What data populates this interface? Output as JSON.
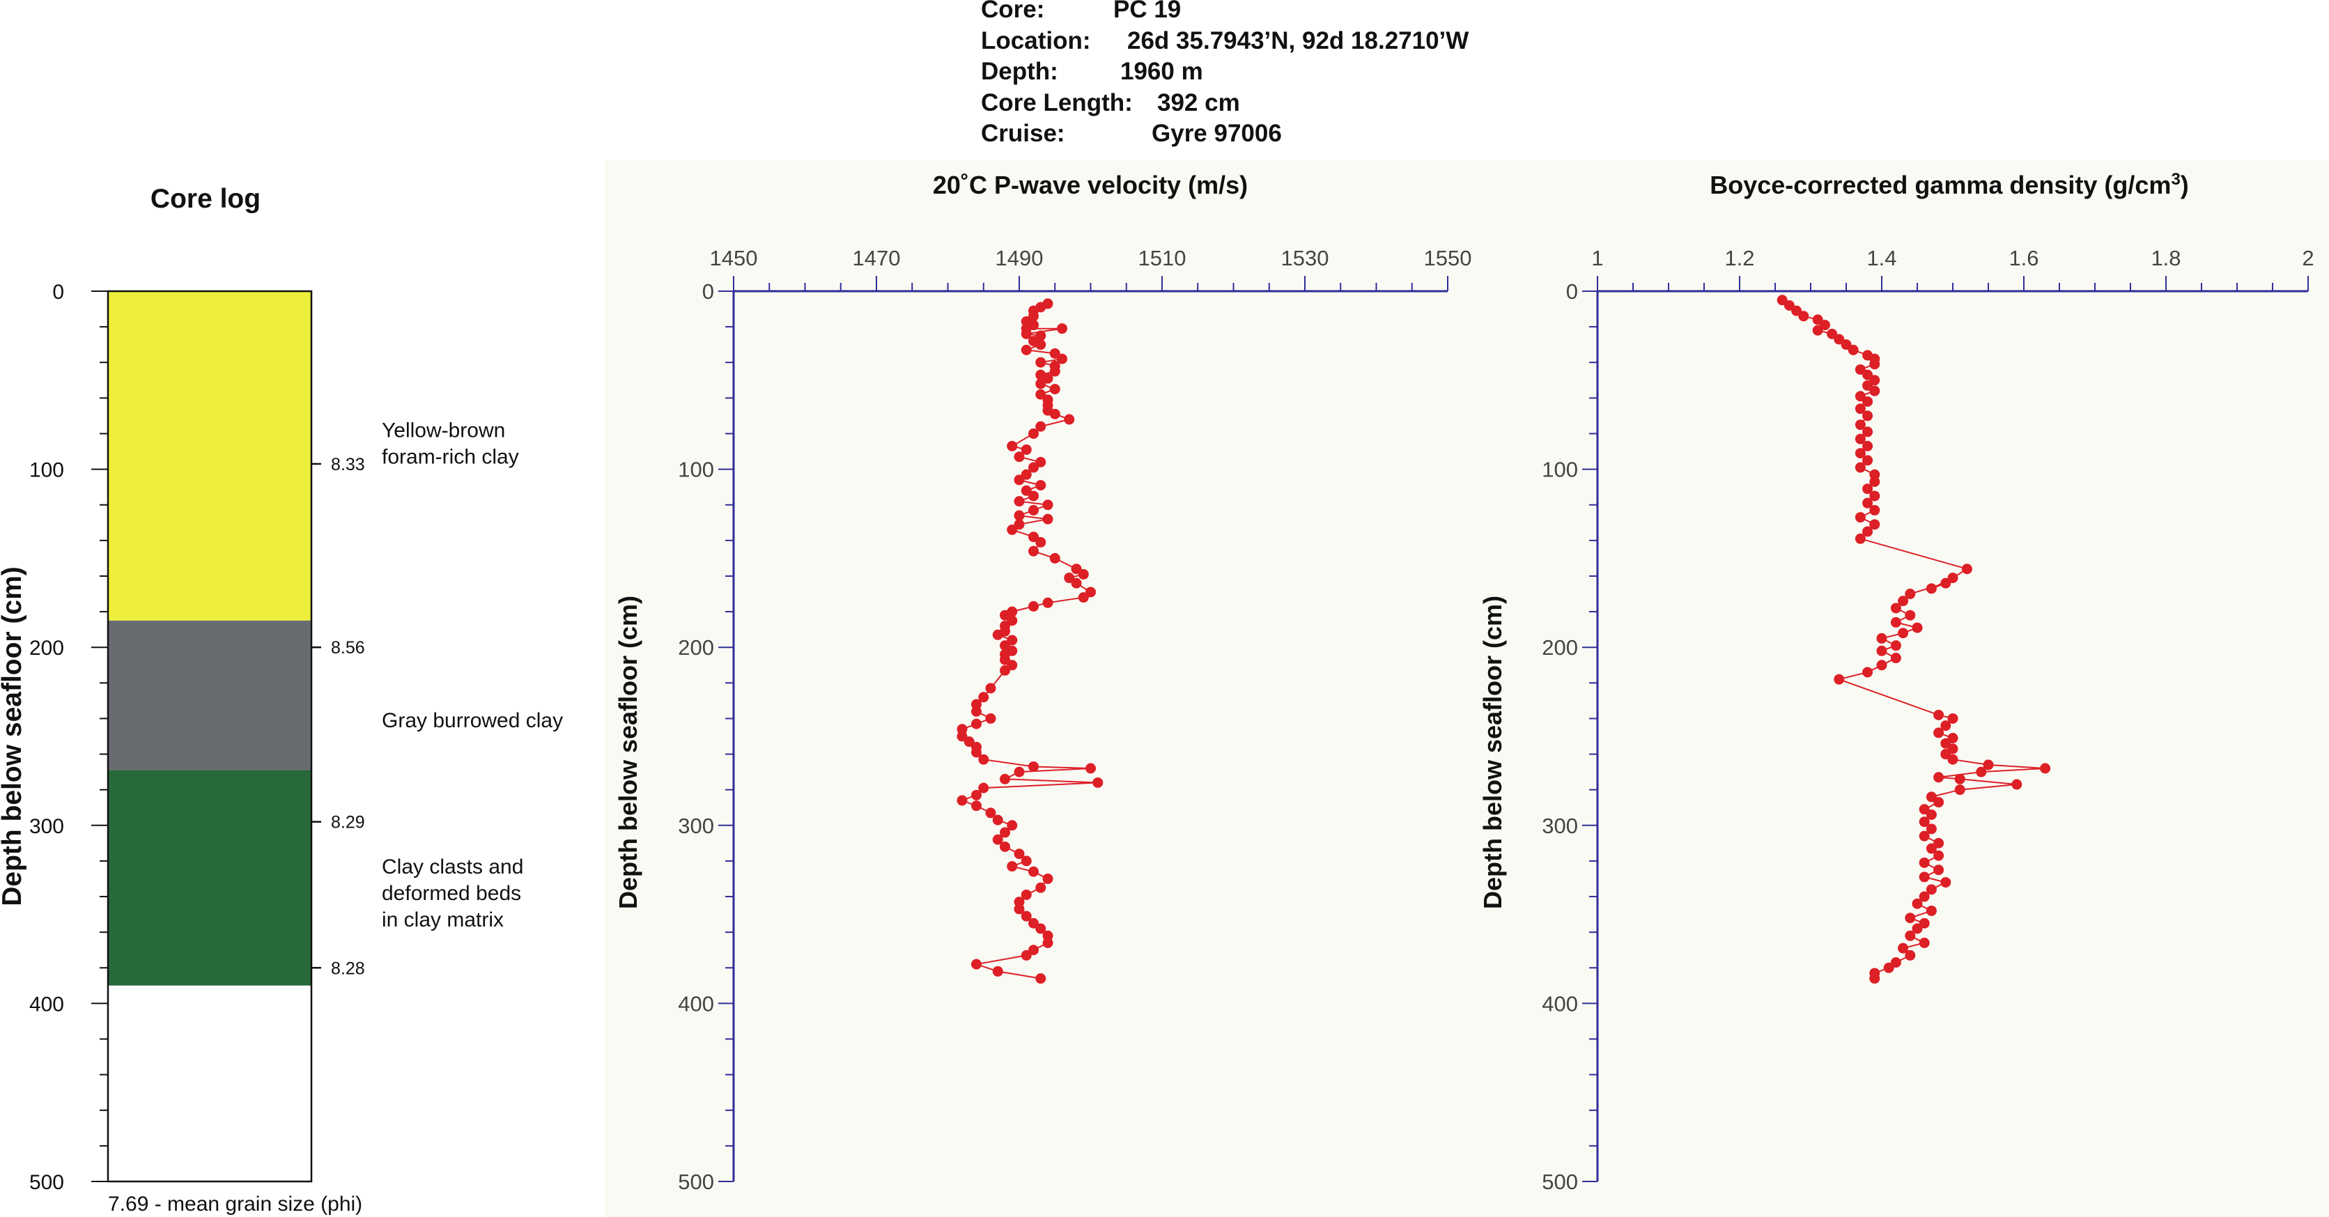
{
  "header": {
    "rows": [
      {
        "label": "Core:",
        "value": "PC 19"
      },
      {
        "label": "Location:",
        "value": "26d 35.7943’N, 92d 18.2710’W"
      },
      {
        "label": "Depth:",
        "value": "1960 m"
      },
      {
        "label": "Core Length:",
        "value": "392 cm"
      },
      {
        "label": "Cruise:",
        "value": "Gyre 97006"
      }
    ]
  },
  "colors": {
    "yellow_clay": "#eeee3c",
    "gray_clay": "#686c70",
    "green_clay": "#27693b",
    "axis": "#2e2e9a",
    "data": "#dd1f26",
    "panel_bg": "#fafaf4"
  },
  "chart_data": [
    {
      "type": "bar",
      "title": "Core log",
      "ylabel": "Depth below seafloor (cm)",
      "ylim": [
        0,
        500
      ],
      "yticks": [
        0,
        100,
        200,
        300,
        400,
        500
      ],
      "footnote": "7.69 - mean grain size (phi)",
      "units": [
        {
          "top": 0,
          "bottom": 185,
          "color": "#eeee3c",
          "label": [
            "Yellow-brown",
            "foram-rich clay"
          ],
          "label_depth": 82
        },
        {
          "top": 185,
          "bottom": 269,
          "color": "#686c70",
          "label": [
            "Gray burrowed clay"
          ],
          "label_depth": 245
        },
        {
          "top": 269,
          "bottom": 390,
          "color": "#27693b",
          "label": [
            "Clay clasts and",
            "deformed beds",
            "in clay matrix"
          ],
          "label_depth": 327
        },
        {
          "top": 390,
          "bottom": 500,
          "color": "#ffffff",
          "label": [],
          "label_depth": 0
        }
      ],
      "grain_size": [
        {
          "depth": 97,
          "label": "8.33"
        },
        {
          "depth": 200,
          "label": "8.56"
        },
        {
          "depth": 298,
          "label": "8.29"
        },
        {
          "depth": 380,
          "label": "8.28"
        }
      ]
    },
    {
      "type": "line",
      "title": "20˚C P-wave velocity (m/s)",
      "ylabel": "Depth below seafloor (cm)",
      "xlim": [
        1450,
        1550
      ],
      "ylim": [
        0,
        500
      ],
      "xticks": [
        1450,
        1470,
        1490,
        1510,
        1530,
        1550
      ],
      "yticks": [
        0,
        100,
        200,
        300,
        400,
        500
      ],
      "series": [
        {
          "points": [
            [
              1494,
              7
            ],
            [
              1493,
              9
            ],
            [
              1492,
              11
            ],
            [
              1492,
              14
            ],
            [
              1491,
              17
            ],
            [
              1492,
              19
            ],
            [
              1491,
              21
            ],
            [
              1496,
              21
            ],
            [
              1491,
              24
            ],
            [
              1493,
              25
            ],
            [
              1492,
              28
            ],
            [
              1493,
              30
            ],
            [
              1491,
              33
            ],
            [
              1495,
              35
            ],
            [
              1496,
              38
            ],
            [
              1493,
              40
            ],
            [
              1495,
              42
            ],
            [
              1495,
              45
            ],
            [
              1493,
              47
            ],
            [
              1494,
              49
            ],
            [
              1493,
              52
            ],
            [
              1495,
              55
            ],
            [
              1493,
              58
            ],
            [
              1494,
              61
            ],
            [
              1494,
              64
            ],
            [
              1494,
              67
            ],
            [
              1495,
              69
            ],
            [
              1497,
              72
            ],
            [
              1493,
              76
            ],
            [
              1492,
              80
            ],
            [
              1489,
              87
            ],
            [
              1491,
              89
            ],
            [
              1490,
              93
            ],
            [
              1493,
              96
            ],
            [
              1492,
              99
            ],
            [
              1491,
              103
            ],
            [
              1490,
              106
            ],
            [
              1493,
              109
            ],
            [
              1491,
              112
            ],
            [
              1492,
              115
            ],
            [
              1490,
              118
            ],
            [
              1494,
              120
            ],
            [
              1492,
              123
            ],
            [
              1490,
              126
            ],
            [
              1494,
              128
            ],
            [
              1490,
              131
            ],
            [
              1489,
              134
            ],
            [
              1492,
              138
            ],
            [
              1493,
              141
            ],
            [
              1492,
              146
            ],
            [
              1495,
              150
            ],
            [
              1498,
              156
            ],
            [
              1499,
              159
            ],
            [
              1497,
              161
            ],
            [
              1498,
              164
            ],
            [
              1500,
              169
            ],
            [
              1499,
              172
            ],
            [
              1494,
              175
            ],
            [
              1492,
              177
            ],
            [
              1489,
              180
            ],
            [
              1488,
              182
            ],
            [
              1489,
              185
            ],
            [
              1488,
              188
            ],
            [
              1488,
              191
            ],
            [
              1487,
              193
            ],
            [
              1489,
              196
            ],
            [
              1488,
              199
            ],
            [
              1489,
              202
            ],
            [
              1488,
              204
            ],
            [
              1488,
              207
            ],
            [
              1489,
              210
            ],
            [
              1488,
              213
            ],
            [
              1486,
              223
            ],
            [
              1485,
              228
            ],
            [
              1484,
              232
            ],
            [
              1484,
              236
            ],
            [
              1486,
              240
            ],
            [
              1484,
              243
            ],
            [
              1482,
              246
            ],
            [
              1482,
              250
            ],
            [
              1483,
              253
            ],
            [
              1484,
              256
            ],
            [
              1484,
              259
            ],
            [
              1485,
              263
            ],
            [
              1492,
              267
            ],
            [
              1500,
              268
            ],
            [
              1490,
              270
            ],
            [
              1488,
              274
            ],
            [
              1501,
              276
            ],
            [
              1485,
              279
            ],
            [
              1484,
              283
            ],
            [
              1482,
              286
            ],
            [
              1484,
              289
            ],
            [
              1486,
              293
            ],
            [
              1487,
              297
            ],
            [
              1489,
              300
            ],
            [
              1488,
              304
            ],
            [
              1487,
              308
            ],
            [
              1488,
              312
            ],
            [
              1490,
              316
            ],
            [
              1491,
              320
            ],
            [
              1489,
              323
            ],
            [
              1492,
              326
            ],
            [
              1494,
              330
            ],
            [
              1493,
              335
            ],
            [
              1491,
              339
            ],
            [
              1490,
              343
            ],
            [
              1490,
              347
            ],
            [
              1491,
              351
            ],
            [
              1492,
              355
            ],
            [
              1493,
              358
            ],
            [
              1494,
              362
            ],
            [
              1494,
              366
            ],
            [
              1492,
              370
            ],
            [
              1491,
              373
            ],
            [
              1484,
              378
            ],
            [
              1487,
              382
            ],
            [
              1493,
              386
            ]
          ]
        }
      ]
    },
    {
      "type": "line",
      "title": "Boyce-corrected gamma density (g/cm",
      "title_sup": "3",
      "title_end": ")",
      "ylabel": "Depth below seafloor (cm)",
      "xlim": [
        1,
        2
      ],
      "ylim": [
        0,
        500
      ],
      "xticks": [
        1,
        1.2,
        1.4,
        1.6,
        1.8,
        2
      ],
      "xtick_labels": [
        "1",
        "1.2",
        "1.4",
        "1.6",
        "1.8",
        "2"
      ],
      "yticks": [
        0,
        100,
        200,
        300,
        400,
        500
      ],
      "series": [
        {
          "points": [
            [
              1.26,
              5
            ],
            [
              1.27,
              8
            ],
            [
              1.28,
              11
            ],
            [
              1.29,
              14
            ],
            [
              1.31,
              16
            ],
            [
              1.32,
              19
            ],
            [
              1.31,
              22
            ],
            [
              1.33,
              24
            ],
            [
              1.34,
              27
            ],
            [
              1.35,
              30
            ],
            [
              1.36,
              33
            ],
            [
              1.38,
              36
            ],
            [
              1.39,
              38
            ],
            [
              1.39,
              41
            ],
            [
              1.37,
              44
            ],
            [
              1.38,
              47
            ],
            [
              1.39,
              50
            ],
            [
              1.38,
              53
            ],
            [
              1.39,
              56
            ],
            [
              1.37,
              59
            ],
            [
              1.38,
              62
            ],
            [
              1.37,
              66
            ],
            [
              1.38,
              70
            ],
            [
              1.37,
              75
            ],
            [
              1.38,
              79
            ],
            [
              1.37,
              83
            ],
            [
              1.38,
              87
            ],
            [
              1.37,
              91
            ],
            [
              1.38,
              95
            ],
            [
              1.37,
              99
            ],
            [
              1.39,
              103
            ],
            [
              1.39,
              107
            ],
            [
              1.38,
              111
            ],
            [
              1.39,
              115
            ],
            [
              1.38,
              119
            ],
            [
              1.39,
              123
            ],
            [
              1.37,
              127
            ],
            [
              1.39,
              131
            ],
            [
              1.38,
              135
            ],
            [
              1.37,
              139
            ],
            [
              1.52,
              156
            ],
            [
              1.5,
              161
            ],
            [
              1.47,
              167
            ],
            [
              1.49,
              164
            ],
            [
              1.44,
              170
            ],
            [
              1.43,
              174
            ],
            [
              1.42,
              178
            ],
            [
              1.44,
              182
            ],
            [
              1.42,
              186
            ],
            [
              1.45,
              189
            ],
            [
              1.43,
              192
            ],
            [
              1.4,
              195
            ],
            [
              1.42,
              199
            ],
            [
              1.4,
              202
            ],
            [
              1.42,
              206
            ],
            [
              1.4,
              210
            ],
            [
              1.38,
              214
            ],
            [
              1.34,
              218
            ],
            [
              1.48,
              238
            ],
            [
              1.5,
              240
            ],
            [
              1.49,
              244
            ],
            [
              1.48,
              248
            ],
            [
              1.5,
              251
            ],
            [
              1.49,
              254
            ],
            [
              1.5,
              257
            ],
            [
              1.49,
              260
            ],
            [
              1.5,
              263
            ],
            [
              1.55,
              266
            ],
            [
              1.63,
              268
            ],
            [
              1.54,
              270
            ],
            [
              1.48,
              273
            ],
            [
              1.51,
              274
            ],
            [
              1.59,
              277
            ],
            [
              1.51,
              280
            ],
            [
              1.47,
              284
            ],
            [
              1.48,
              287
            ],
            [
              1.46,
              291
            ],
            [
              1.47,
              294
            ],
            [
              1.46,
              298
            ],
            [
              1.47,
              302
            ],
            [
              1.46,
              306
            ],
            [
              1.48,
              310
            ],
            [
              1.47,
              313
            ],
            [
              1.48,
              317
            ],
            [
              1.46,
              321
            ],
            [
              1.48,
              325
            ],
            [
              1.46,
              329
            ],
            [
              1.49,
              332
            ],
            [
              1.47,
              336
            ],
            [
              1.46,
              340
            ],
            [
              1.45,
              344
            ],
            [
              1.47,
              348
            ],
            [
              1.44,
              352
            ],
            [
              1.46,
              355
            ],
            [
              1.45,
              358
            ],
            [
              1.44,
              362
            ],
            [
              1.46,
              366
            ],
            [
              1.43,
              369
            ],
            [
              1.44,
              373
            ],
            [
              1.42,
              377
            ],
            [
              1.41,
              380
            ],
            [
              1.39,
              383
            ],
            [
              1.39,
              386
            ]
          ]
        }
      ]
    }
  ]
}
